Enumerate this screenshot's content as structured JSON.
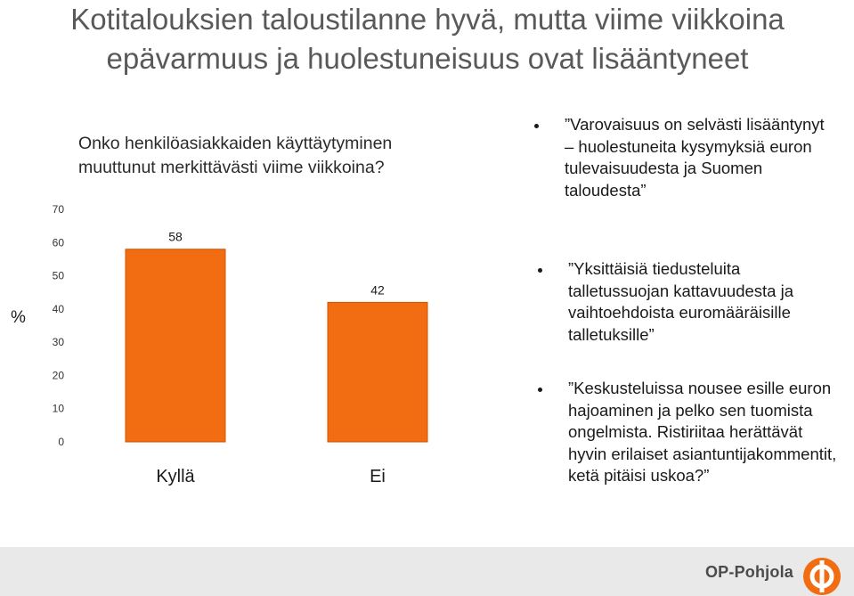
{
  "slide": {
    "title_line1": "Kotitalouksien taloustilanne hyvä, mutta viime viikkoina",
    "title_line2": "epävarmuus ja huolestuneisuus ovat lisääntyneet"
  },
  "chart_data": {
    "type": "bar",
    "title": "Onko henkilöasiakkaiden käyttäytyminen muuttunut merkittävästi viime viikkoina?",
    "categories": [
      "Kyllä",
      "Ei"
    ],
    "values": [
      58,
      42
    ],
    "ylabel": "%",
    "ylim": [
      0,
      70
    ],
    "yticks": [
      0,
      10,
      20,
      30,
      40,
      50,
      60,
      70
    ],
    "grid": false,
    "bar_color": "#f26c12"
  },
  "bullets": [
    "”Varovaisuus on selvästi lisääntynyt – huolestuneita kysymyksiä euron tulevaisuudesta ja Suomen taloudesta”",
    "”Yksittäisiä tiedusteluita talletussuojan kattavuudesta ja vaihtoehdoista euromääräisille talletuksille”",
    "”Keskusteluissa nousee esille euron hajoaminen ja pelko sen tuomista ongelmista. Ristiriitaa herättävät hyvin erilaiset asiantuntijakommentit, ketä pitäisi uskoa?”"
  ],
  "footer": {
    "brand": "OP-Pohjola",
    "logo_color": "#f26c12",
    "band_color": "#e9e9e9"
  }
}
